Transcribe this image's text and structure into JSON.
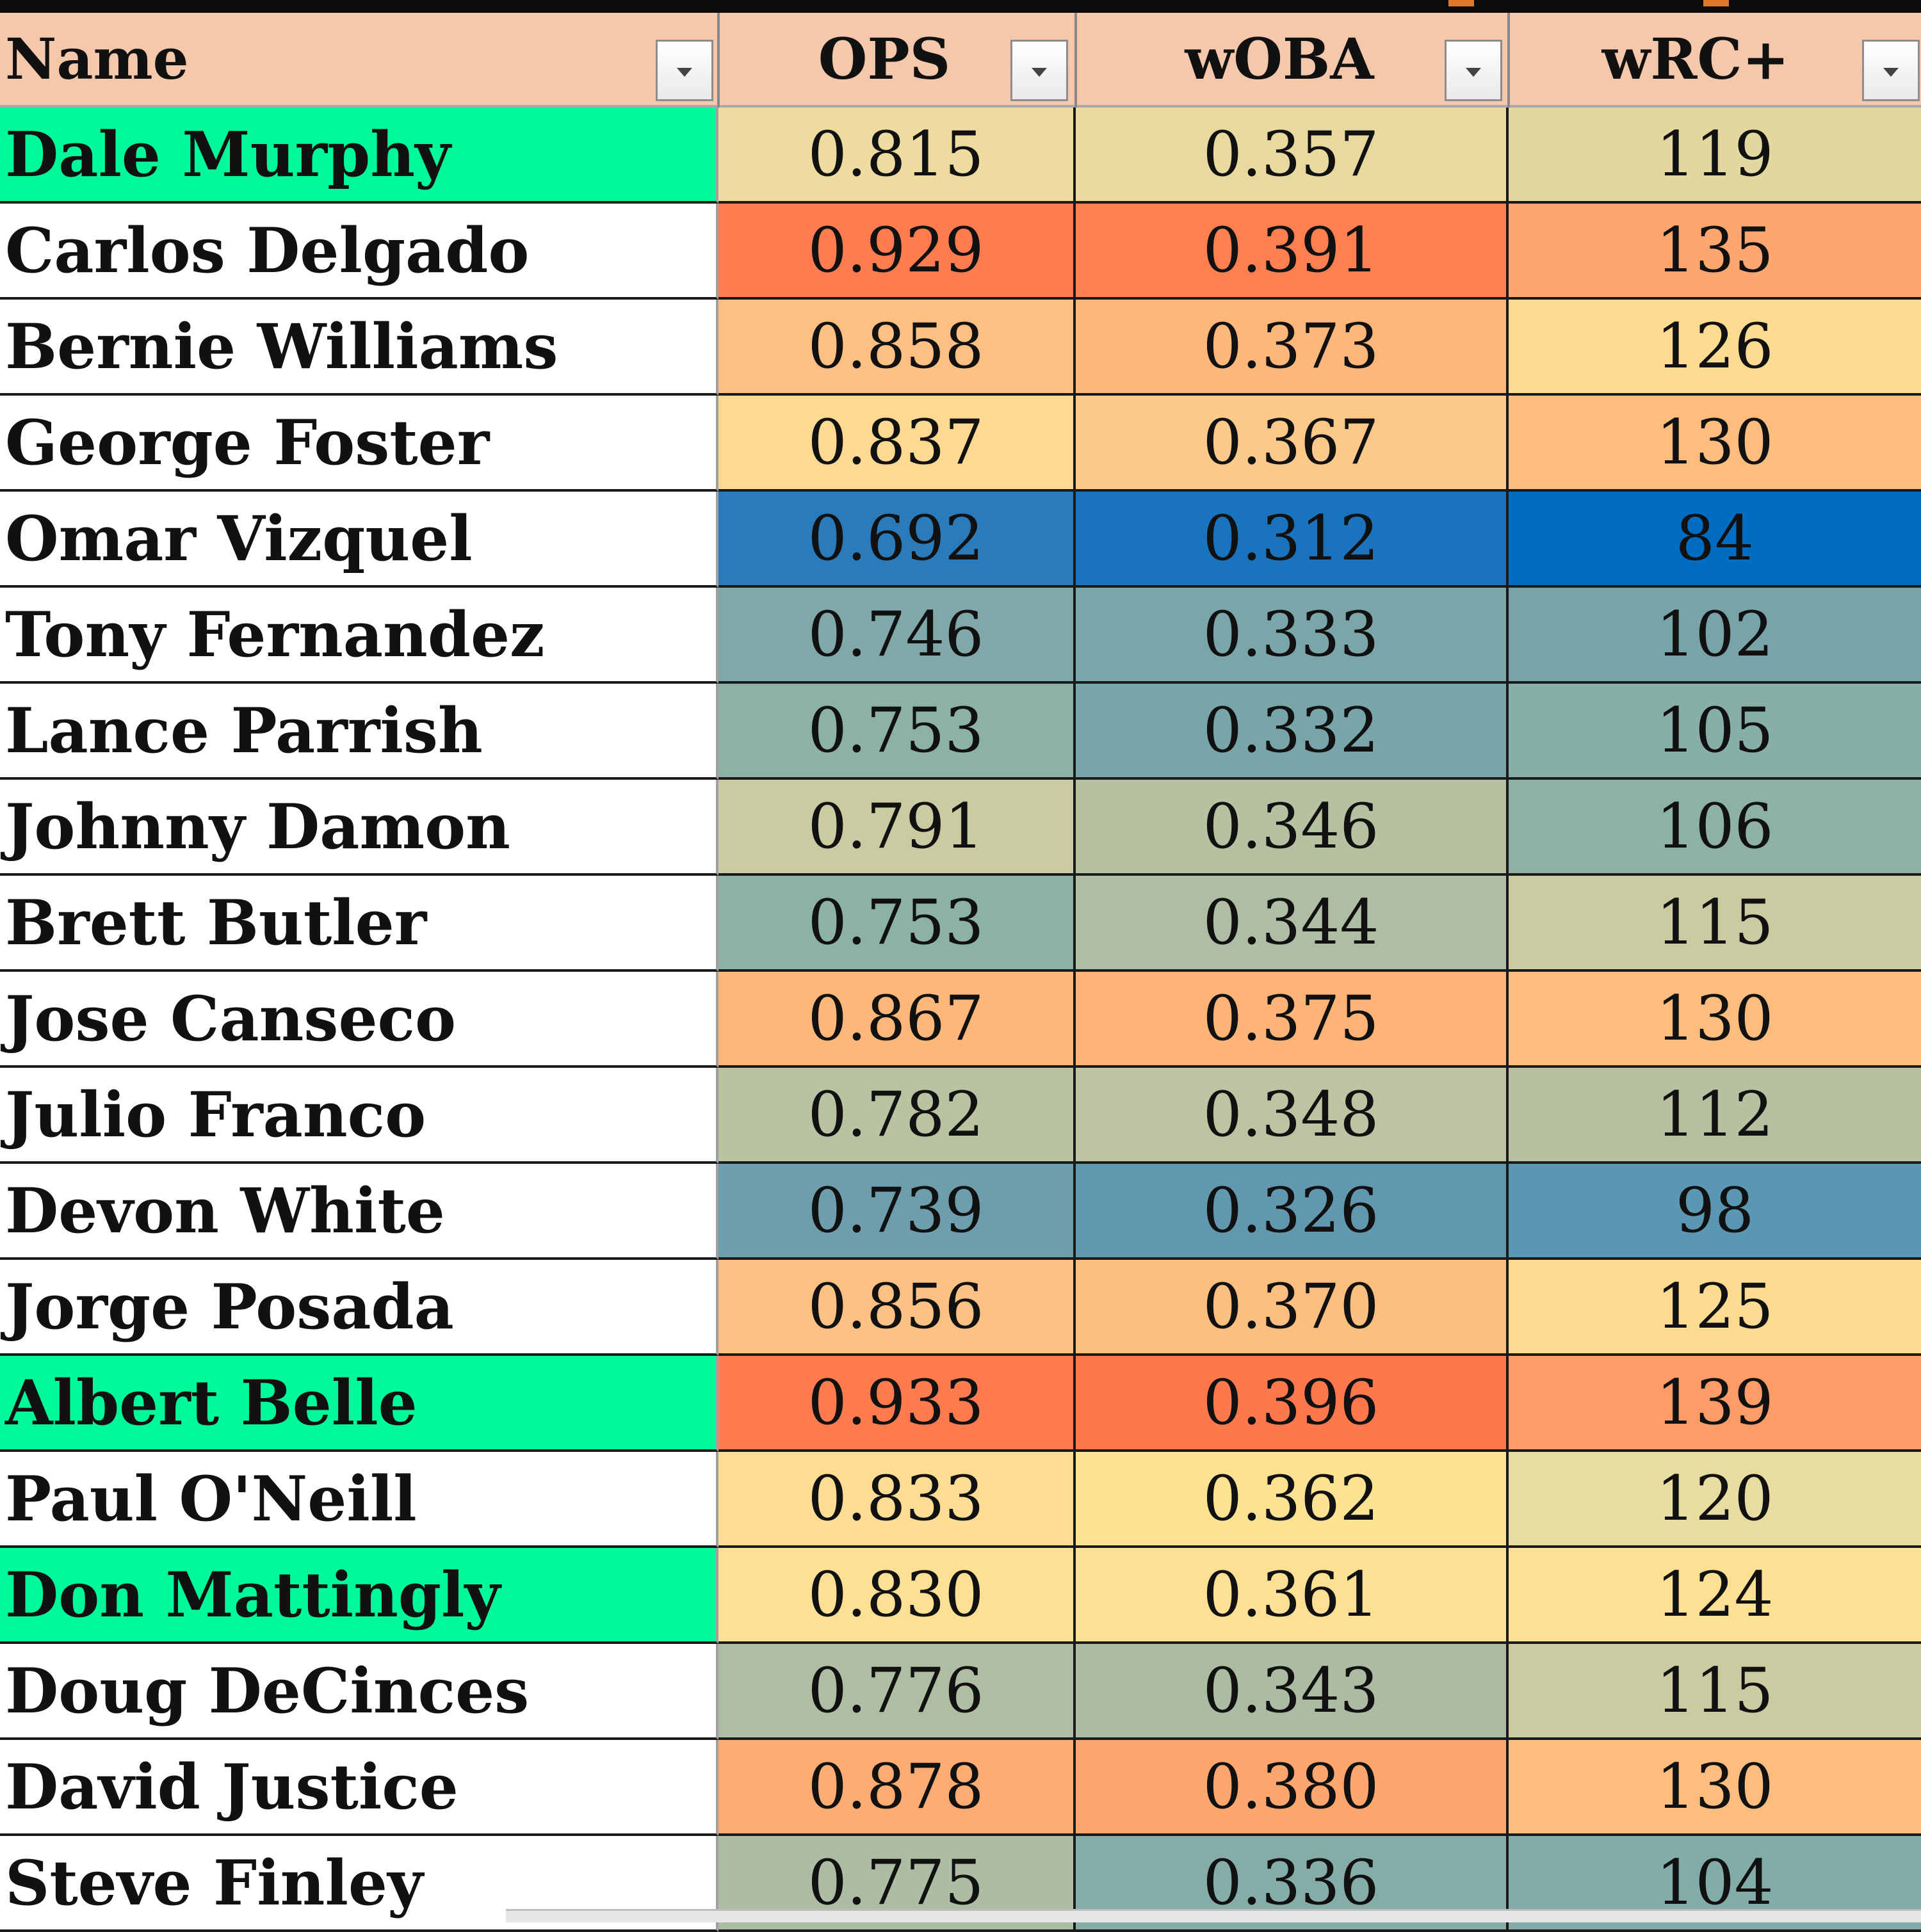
{
  "columns": {
    "name": "Name",
    "ops": "OPS",
    "woba": "wOBA",
    "wrc": "wRC+"
  },
  "colors": {
    "header_bg": "#f6c8ab",
    "highlight_name": "#00fa9a",
    "default_name": "#ffffff"
  },
  "rows": [
    {
      "name": "Dale Murphy",
      "ops": "0.815",
      "woba": "0.357",
      "wrc": "119",
      "highlight": true,
      "ops_bg": "#eedb9f",
      "woba_bg": "#e8da9f",
      "wrc_bg": "#e3d7a0"
    },
    {
      "name": "Carlos Delgado",
      "ops": "0.929",
      "woba": "0.391",
      "wrc": "135",
      "highlight": false,
      "ops_bg": "#fe7c50",
      "woba_bg": "#fe8050",
      "wrc_bg": "#fda66f"
    },
    {
      "name": "Bernie Williams",
      "ops": "0.858",
      "woba": "0.373",
      "wrc": "126",
      "highlight": false,
      "ops_bg": "#fdc082",
      "woba_bg": "#fdb77a",
      "wrc_bg": "#fddb91"
    },
    {
      "name": "George Foster",
      "ops": "0.837",
      "woba": "0.367",
      "wrc": "130",
      "highlight": false,
      "ops_bg": "#fdd991",
      "woba_bg": "#fdc98a",
      "wrc_bg": "#fdbd7e"
    },
    {
      "name": "Omar Vizquel",
      "ops": "0.692",
      "woba": "0.312",
      "wrc": "84",
      "highlight": false,
      "ops_bg": "#2a7bbb",
      "woba_bg": "#1a73bd",
      "wrc_bg": "#006dc3"
    },
    {
      "name": "Tony Fernandez",
      "ops": "0.746",
      "woba": "0.333",
      "wrc": "102",
      "highlight": false,
      "ops_bg": "#80a8a8",
      "woba_bg": "#7aa6a9",
      "wrc_bg": "#77a3a9"
    },
    {
      "name": "Lance Parrish",
      "ops": "0.753",
      "woba": "0.332",
      "wrc": "105",
      "highlight": false,
      "ops_bg": "#8cb1a7",
      "woba_bg": "#78a5a9",
      "wrc_bg": "#88aea8"
    },
    {
      "name": "Johnny Damon",
      "ops": "0.791",
      "woba": "0.346",
      "wrc": "106",
      "highlight": false,
      "ops_bg": "#cacba1",
      "woba_bg": "#b6c1a2",
      "wrc_bg": "#8db0a7"
    },
    {
      "name": "Brett Butler",
      "ops": "0.753",
      "woba": "0.344",
      "wrc": "115",
      "highlight": false,
      "ops_bg": "#8cb1a7",
      "woba_bg": "#aebda3",
      "wrc_bg": "#cacba1"
    },
    {
      "name": "Jose Canseco",
      "ops": "0.867",
      "woba": "0.375",
      "wrc": "130",
      "highlight": false,
      "ops_bg": "#fdb779",
      "woba_bg": "#fdb476",
      "wrc_bg": "#fdbd7e"
    },
    {
      "name": "Julio Franco",
      "ops": "0.782",
      "woba": "0.348",
      "wrc": "112",
      "highlight": false,
      "ops_bg": "#b9c3a2",
      "woba_bg": "#bcc4a2",
      "wrc_bg": "#b7c1a2"
    },
    {
      "name": "Devon White",
      "ops": "0.739",
      "woba": "0.326",
      "wrc": "98",
      "highlight": false,
      "ops_bg": "#6c9eae",
      "woba_bg": "#6198b0",
      "wrc_bg": "#5a97b3"
    },
    {
      "name": "Jorge Posada",
      "ops": "0.856",
      "woba": "0.370",
      "wrc": "125",
      "highlight": false,
      "ops_bg": "#fdc183",
      "woba_bg": "#fdbf80",
      "wrc_bg": "#fddb91"
    },
    {
      "name": "Albert Belle",
      "ops": "0.933",
      "woba": "0.396",
      "wrc": "139",
      "highlight": true,
      "ops_bg": "#fe7a4f",
      "woba_bg": "#fe784d",
      "wrc_bg": "#fd9c67"
    },
    {
      "name": "Paul O'Neill",
      "ops": "0.833",
      "woba": "0.362",
      "wrc": "120",
      "highlight": false,
      "ops_bg": "#fddd94",
      "woba_bg": "#fde294",
      "wrc_bg": "#e8dca0"
    },
    {
      "name": "Don Mattingly",
      "ops": "0.830",
      "woba": "0.361",
      "wrc": "124",
      "highlight": true,
      "ops_bg": "#fde094",
      "woba_bg": "#fde094",
      "wrc_bg": "#fde094"
    },
    {
      "name": "Doug DeCinces",
      "ops": "0.776",
      "woba": "0.343",
      "wrc": "115",
      "highlight": false,
      "ops_bg": "#afbea3",
      "woba_bg": "#abbca3",
      "wrc_bg": "#cacba1"
    },
    {
      "name": "David Justice",
      "ops": "0.878",
      "woba": "0.380",
      "wrc": "130",
      "highlight": false,
      "ops_bg": "#fdac72",
      "woba_bg": "#fda66e",
      "wrc_bg": "#fdbd7e"
    },
    {
      "name": "Steve Finley",
      "ops": "0.775",
      "woba": "0.336",
      "wrc": "104",
      "highlight": false,
      "ops_bg": "#adbda3",
      "woba_bg": "#85aca7",
      "wrc_bg": "#82aca8"
    }
  ]
}
